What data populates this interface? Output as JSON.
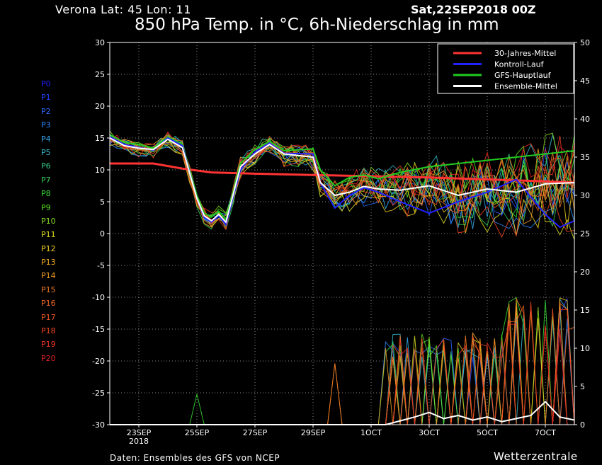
{
  "header": {
    "location": "Verona   Lat: 45 Lon: 11",
    "run": "Sat,22SEP2018 00Z",
    "title": "850 hPa Temp. in °C, 6h-Niederschlag in mm"
  },
  "footer": {
    "source": "Daten: Ensembles des GFS von NCEP",
    "brand": "Wetterzentrale"
  },
  "members": [
    {
      "name": "P0",
      "color": "#2222ff"
    },
    {
      "name": "P1",
      "color": "#2244ff"
    },
    {
      "name": "P2",
      "color": "#2a66ff"
    },
    {
      "name": "P3",
      "color": "#2a88ff"
    },
    {
      "name": "P4",
      "color": "#33aaee"
    },
    {
      "name": "P5",
      "color": "#33bbcc"
    },
    {
      "name": "P6",
      "color": "#33cc88"
    },
    {
      "name": "P7",
      "color": "#33cc55"
    },
    {
      "name": "P8",
      "color": "#33dd33"
    },
    {
      "name": "P9",
      "color": "#55dd22"
    },
    {
      "name": "P10",
      "color": "#88dd22"
    },
    {
      "name": "P11",
      "color": "#dddd22"
    },
    {
      "name": "P12",
      "color": "#eecc22"
    },
    {
      "name": "P13",
      "color": "#eeaa22"
    },
    {
      "name": "P14",
      "color": "#ee9922"
    },
    {
      "name": "P15",
      "color": "#ee7722"
    },
    {
      "name": "P16",
      "color": "#ee6622"
    },
    {
      "name": "P17",
      "color": "#ee5522"
    },
    {
      "name": "P18",
      "color": "#ee4422"
    },
    {
      "name": "P19",
      "color": "#ee3322"
    },
    {
      "name": "P20",
      "color": "#dd2222"
    }
  ],
  "chart_data": {
    "type": "line",
    "x_axis": {
      "unit": "time-step (6h steps from 22SEP 00Z)",
      "range": [
        0,
        64
      ],
      "ticks": [
        {
          "pos": 4,
          "label": "23SEP",
          "sub": "2018"
        },
        {
          "pos": 12,
          "label": "25SEP"
        },
        {
          "pos": 20,
          "label": "27SEP"
        },
        {
          "pos": 28,
          "label": "29SEP"
        },
        {
          "pos": 36,
          "label": "1OCT"
        },
        {
          "pos": 44,
          "label": "3OCT"
        },
        {
          "pos": 52,
          "label": "5OCT"
        },
        {
          "pos": 60,
          "label": "7OCT"
        }
      ]
    },
    "y_left": {
      "label": "850 hPa Temp. (°C)",
      "range": [
        -30,
        30
      ],
      "ticks": [
        30,
        25,
        20,
        15,
        10,
        5,
        0,
        -5,
        -10,
        -15,
        -20,
        -25,
        -30
      ]
    },
    "y_right": {
      "label": "6h-Niederschlag (mm)",
      "range": [
        0,
        50
      ],
      "ticks": [
        50,
        45,
        40,
        35,
        30,
        25,
        20,
        15,
        10,
        5,
        0
      ]
    },
    "grid": true,
    "legend_position": "top-right",
    "legend": [
      {
        "name": "30-Jahres-Mittel",
        "color": "#ff3333"
      },
      {
        "name": "Kontroll-Lauf",
        "color": "#2222ff"
      },
      {
        "name": "GFS-Hauptlauf",
        "color": "#22cc22"
      },
      {
        "name": "Ensemble-Mittel",
        "color": "#ffffff"
      }
    ],
    "series": [
      {
        "name": "30-Jahres-Mittel",
        "kind": "temp",
        "color": "#ff3333",
        "x": [
          0,
          6,
          10,
          14,
          20,
          28,
          36,
          44,
          52,
          60,
          64
        ],
        "values": [
          11,
          11,
          10.2,
          9.6,
          9.4,
          9.2,
          9.0,
          8.8,
          8.5,
          8.2,
          8.0
        ]
      },
      {
        "name": "GFS-Hauptlauf",
        "kind": "temp",
        "color": "#22cc22",
        "x": [
          0,
          2,
          4,
          6,
          8,
          10,
          12,
          13,
          14,
          15,
          16,
          18,
          20,
          22,
          24,
          28,
          29,
          31,
          33,
          35,
          37,
          40,
          44,
          48,
          52,
          56,
          60,
          64
        ],
        "values": [
          15.5,
          14.3,
          14.0,
          13.4,
          15.2,
          14.0,
          6.0,
          3.2,
          2.6,
          3.5,
          2.2,
          11.0,
          13.2,
          14.5,
          13.0,
          13.3,
          10.0,
          7.5,
          8.8,
          9.2,
          8.6,
          9.6,
          10.5,
          11.0,
          11.5,
          12.0,
          12.5,
          13.0
        ]
      },
      {
        "name": "Kontroll-Lauf",
        "kind": "temp",
        "color": "#2222ff",
        "x": [
          0,
          2,
          4,
          6,
          8,
          10,
          12,
          13,
          14,
          15,
          16,
          18,
          20,
          22,
          24,
          28,
          29,
          31,
          33,
          35,
          37,
          40,
          44,
          48,
          52,
          56,
          60,
          62,
          64
        ],
        "values": [
          15.2,
          14.0,
          13.5,
          13.1,
          15.0,
          13.8,
          5.5,
          2.5,
          1.8,
          2.8,
          1.4,
          10.0,
          12.8,
          14.2,
          12.6,
          12.5,
          8.0,
          4.0,
          6.0,
          7.2,
          6.5,
          5.0,
          3.2,
          5.0,
          6.5,
          8.5,
          3.0,
          1.0,
          2.0
        ]
      },
      {
        "name": "Ensemble-Mittel",
        "kind": "temp",
        "color": "#ffffff",
        "x": [
          0,
          2,
          4,
          6,
          8,
          10,
          12,
          13,
          14,
          15,
          16,
          18,
          20,
          22,
          24,
          28,
          29,
          31,
          33,
          35,
          37,
          40,
          44,
          48,
          52,
          56,
          60,
          64
        ],
        "values": [
          15.0,
          13.8,
          13.4,
          13.2,
          14.8,
          13.5,
          5.5,
          2.8,
          2.0,
          3.0,
          1.8,
          10.5,
          12.5,
          14.0,
          12.5,
          12.0,
          8.0,
          6.0,
          6.5,
          7.4,
          7.0,
          6.8,
          7.5,
          6.0,
          7.0,
          6.5,
          7.8,
          8.0
        ]
      },
      {
        "name": "Ensemble-Mittel",
        "kind": "precip",
        "color": "#ffffff",
        "x": [
          0,
          10,
          24,
          38,
          40,
          42,
          44,
          46,
          48,
          50,
          52,
          54,
          56,
          58,
          60,
          62,
          64
        ],
        "values": [
          0,
          0,
          0,
          0,
          0.5,
          1.0,
          1.6,
          0.8,
          1.2,
          0.6,
          1.0,
          0.4,
          0.8,
          1.2,
          3.0,
          1.0,
          0.6
        ]
      }
    ]
  }
}
